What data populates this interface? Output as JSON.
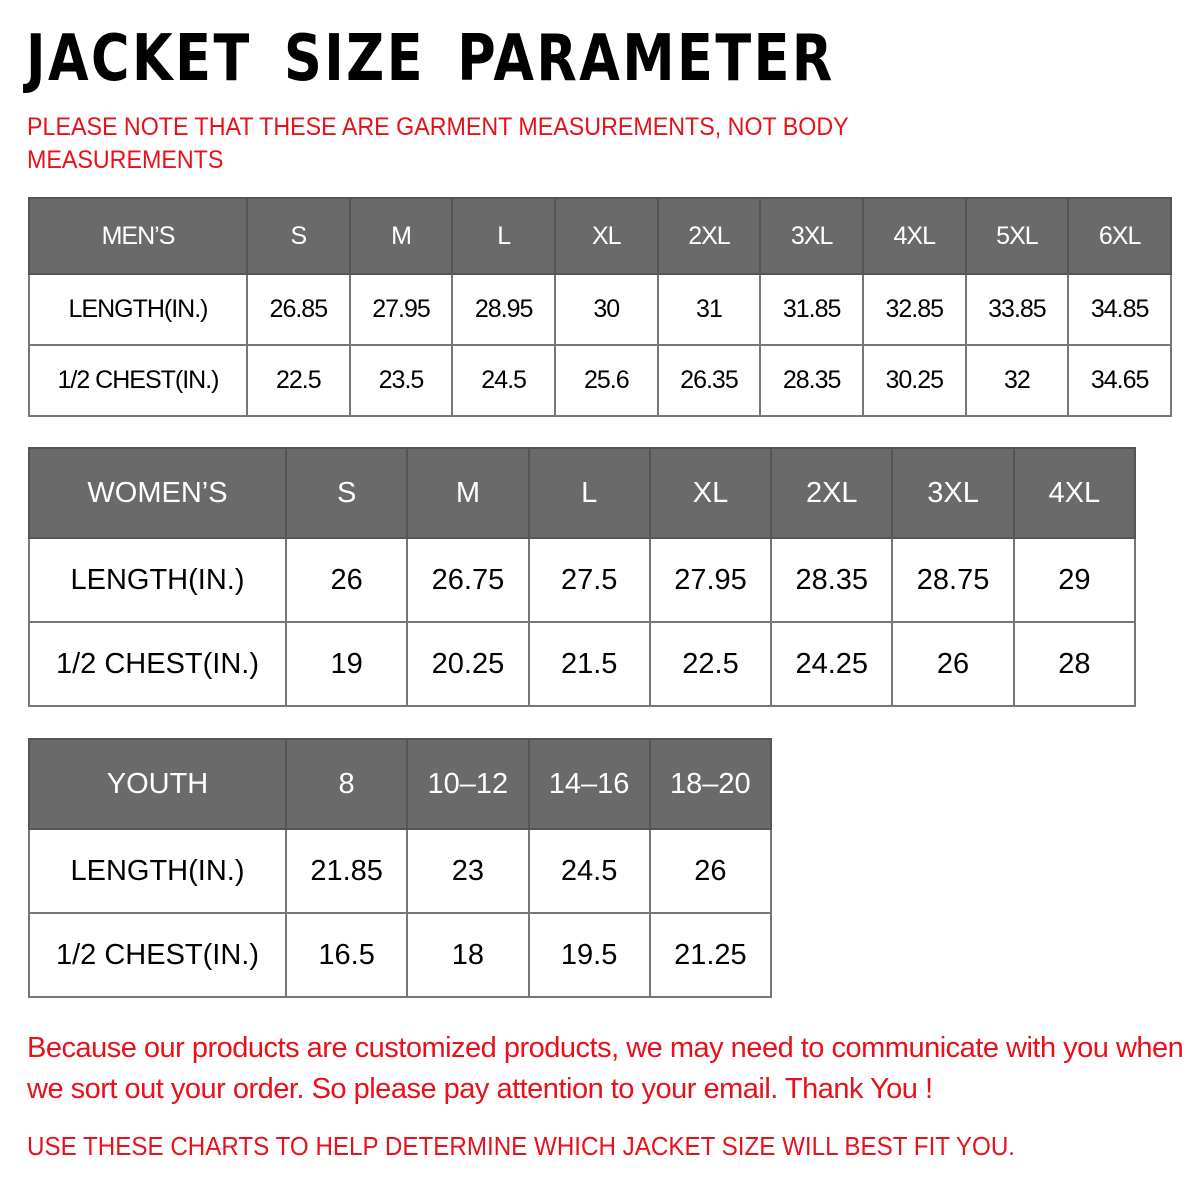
{
  "title": "JACKET SIZE PARAMETER",
  "note": "PLEASE NOTE THAT THESE ARE GARMENT MEASUREMENTS, NOT BODY MEASUREMENTS",
  "colors": {
    "header_bg": "#6a6a6a",
    "accent_red": "#e8111b"
  },
  "tables": {
    "men": {
      "header": [
        "MEN’S",
        "S",
        "M",
        "L",
        "XL",
        "2XL",
        "3XL",
        "4XL",
        "5XL",
        "6XL"
      ],
      "rows": [
        [
          "LENGTH(IN.)",
          "26.85",
          "27.95",
          "28.95",
          "30",
          "31",
          "31.85",
          "32.85",
          "33.85",
          "34.85"
        ],
        [
          "1/2 CHEST(IN.)",
          "22.5",
          "23.5",
          "24.5",
          "25.6",
          "26.35",
          "28.35",
          "30.25",
          "32",
          "34.65"
        ]
      ]
    },
    "women": {
      "header": [
        "WOMEN’S",
        "S",
        "M",
        "L",
        "XL",
        "2XL",
        "3XL",
        "4XL"
      ],
      "rows": [
        [
          "LENGTH(IN.)",
          "26",
          "26.75",
          "27.5",
          "27.95",
          "28.35",
          "28.75",
          "29"
        ],
        [
          "1/2 CHEST(IN.)",
          "19",
          "20.25",
          "21.5",
          "22.5",
          "24.25",
          "26",
          "28"
        ]
      ]
    },
    "youth": {
      "header": [
        "YOUTH",
        "8",
        "10–12",
        "14–16",
        "18–20"
      ],
      "rows": [
        [
          "LENGTH(IN.)",
          "21.85",
          "23",
          "24.5",
          "26"
        ],
        [
          "1/2 CHEST(IN.)",
          "16.5",
          "18",
          "19.5",
          "21.25"
        ]
      ]
    }
  },
  "footer": {
    "message": "Because our products are customized products, we may need to communicate with you when we sort out your order. So please pay attention to your email. Thank You !",
    "instruction": "USE THESE CHARTS TO HELP DETERMINE WHICH JACKET SIZE WILL BEST FIT YOU."
  }
}
